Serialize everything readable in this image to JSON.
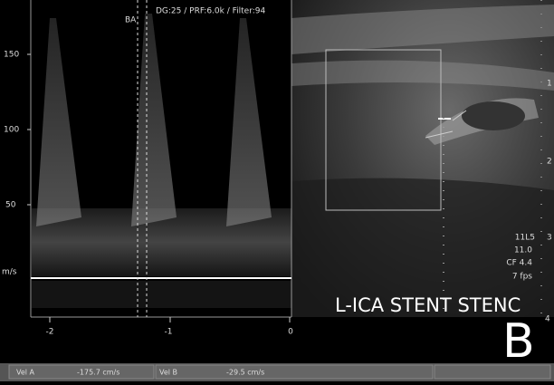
{
  "header": {
    "params": "DG:25 /  PRF:6.0k  / Filter:94",
    "marker": "BA"
  },
  "spectrum": {
    "y_ticks": [
      "150",
      "100",
      "50"
    ],
    "unit": "m/s",
    "x_ticks": [
      "-2",
      "-1",
      "0"
    ]
  },
  "image": {
    "depth_marks": [
      "1",
      "2",
      "3",
      "4"
    ],
    "settings": [
      "11L5",
      "11.0",
      "CF 4.4",
      "7 fps"
    ],
    "label": "L-ICA STENT STENC",
    "panel": "B"
  },
  "status": {
    "fields": [
      "Vel  A",
      "-175.7  cm/s",
      "Vel  B",
      "-29.5  cm/s"
    ]
  }
}
